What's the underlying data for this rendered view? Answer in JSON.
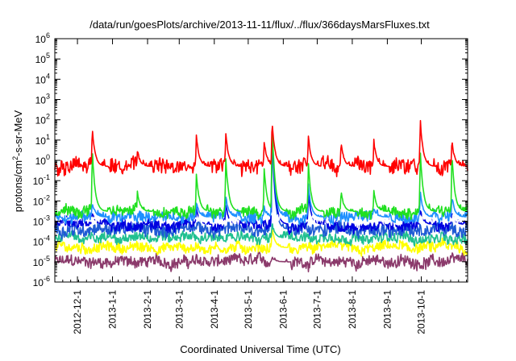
{
  "chart_data": {
    "type": "line",
    "title": "/data/run/goesPlots/archive/2013-11-11/flux/../flux/366daysMarsFluxes.txt",
    "xlabel": "Coordinated Universal Time (UTC)",
    "ylabel": "protons/cm²-s-sr-MeV",
    "yscale": "log",
    "ylim": [
      1e-06,
      1000000.0
    ],
    "xlim": [
      "2012-11-11",
      "2013-11-11"
    ],
    "x_tick_labels": [
      "2012-12-1",
      "2013-1-1",
      "2013-2-1",
      "2013-3-1",
      "2013-4-1",
      "2013-5-1",
      "2013-6-1",
      "2013-7-1",
      "2013-8-1",
      "2013-9-1",
      "2013-10-1"
    ],
    "y_ticks": [
      {
        "base": "10",
        "exp": "-6"
      },
      {
        "base": "10",
        "exp": "-5"
      },
      {
        "base": "10",
        "exp": "-4"
      },
      {
        "base": "10",
        "exp": "-3"
      },
      {
        "base": "10",
        "exp": "-2"
      },
      {
        "base": "10",
        "exp": "-1"
      },
      {
        "base": "10",
        "exp": "0"
      },
      {
        "base": "10",
        "exp": "1"
      },
      {
        "base": "10",
        "exp": "2"
      },
      {
        "base": "10",
        "exp": "3"
      },
      {
        "base": "10",
        "exp": "4"
      },
      {
        "base": "10",
        "exp": "5"
      },
      {
        "base": "10",
        "exp": "6"
      }
    ],
    "grid": false,
    "legend": "none",
    "series": [
      {
        "color": "#8b3a6b",
        "baseline": 1e-05,
        "noise_decades": 0.25,
        "events": [
          {
            "x": "2013-05-22",
            "peak": 2e-05
          },
          {
            "x": "2013-05-25",
            "peak": 1e-06
          }
        ]
      },
      {
        "color": "#ffff00",
        "baseline": 5e-05,
        "noise_decades": 0.22,
        "events": [
          {
            "x": "2013-05-22",
            "peak": 0.0005
          }
        ]
      },
      {
        "color": "#20c090",
        "baseline": 0.00015,
        "noise_decades": 0.22,
        "events": [
          {
            "x": "2013-05-22",
            "peak": 0.0008
          }
        ]
      },
      {
        "color": "#1e5ad4",
        "baseline": 0.0004,
        "noise_decades": 0.3,
        "events": [
          {
            "x": "2013-05-22",
            "peak": 40
          }
        ]
      },
      {
        "color": "#0000e0",
        "baseline": 0.0007,
        "noise_decades": 0.25,
        "events": [
          {
            "x": "2012-12-14",
            "peak": 0.003
          },
          {
            "x": "2013-03-16",
            "peak": 0.005
          },
          {
            "x": "2013-04-11",
            "peak": 0.008
          },
          {
            "x": "2013-05-22",
            "peak": 80
          },
          {
            "x": "2013-06-23",
            "peak": 0.03
          },
          {
            "x": "2013-09-30",
            "peak": 0.004
          },
          {
            "x": "2013-10-28",
            "peak": 0.003
          }
        ]
      },
      {
        "color": "#ffffff",
        "baseline": 0.0013,
        "noise_decades": 0.2,
        "events": []
      },
      {
        "color": "#1e90ff",
        "baseline": 0.0016,
        "noise_decades": 0.25,
        "events": [
          {
            "x": "2012-12-14",
            "peak": 0.01
          },
          {
            "x": "2013-03-16",
            "peak": 0.01
          },
          {
            "x": "2013-04-11",
            "peak": 0.02
          },
          {
            "x": "2013-05-15",
            "peak": 0.005
          },
          {
            "x": "2013-05-22",
            "peak": 100
          },
          {
            "x": "2013-06-23",
            "peak": 0.08
          },
          {
            "x": "2013-08-20",
            "peak": 0.005
          },
          {
            "x": "2013-09-30",
            "peak": 0.03
          },
          {
            "x": "2013-10-28",
            "peak": 0.02
          }
        ]
      },
      {
        "color": "#20e020",
        "baseline": 0.003,
        "noise_decades": 0.25,
        "events": [
          {
            "x": "2012-12-14",
            "peak": 5
          },
          {
            "x": "2013-01-23",
            "peak": 0.03
          },
          {
            "x": "2013-03-16",
            "peak": 0.3
          },
          {
            "x": "2013-04-11",
            "peak": 2
          },
          {
            "x": "2013-05-15",
            "peak": 0.5
          },
          {
            "x": "2013-05-22",
            "peak": 120
          },
          {
            "x": "2013-06-23",
            "peak": 1
          },
          {
            "x": "2013-07-22",
            "peak": 0.03
          },
          {
            "x": "2013-08-20",
            "peak": 0.03
          },
          {
            "x": "2013-09-30",
            "peak": 5
          },
          {
            "x": "2013-10-28",
            "peak": 3
          }
        ]
      },
      {
        "color": "#ff0000",
        "baseline": 0.5,
        "noise_decades": 0.35,
        "events": [
          {
            "x": "2012-12-14",
            "peak": 50
          },
          {
            "x": "2013-01-23",
            "peak": 3
          },
          {
            "x": "2013-03-16",
            "peak": 20
          },
          {
            "x": "2013-04-11",
            "peak": 30
          },
          {
            "x": "2013-05-15",
            "peak": 10
          },
          {
            "x": "2013-05-22",
            "peak": 120
          },
          {
            "x": "2013-06-23",
            "peak": 20
          },
          {
            "x": "2013-07-22",
            "peak": 8
          },
          {
            "x": "2013-08-20",
            "peak": 10
          },
          {
            "x": "2013-09-30",
            "peak": 150
          },
          {
            "x": "2013-10-28",
            "peak": 10
          }
        ]
      }
    ]
  }
}
